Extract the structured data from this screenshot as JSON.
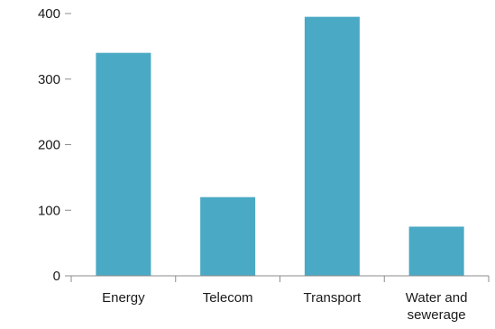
{
  "chart_data": {
    "type": "bar",
    "title": "",
    "xlabel": "",
    "ylabel": "",
    "categories": [
      "Energy",
      "Telecom",
      "Transport",
      "Water and sewerage"
    ],
    "category_lines": [
      [
        "Energy"
      ],
      [
        "Telecom"
      ],
      [
        "Transport"
      ],
      [
        "Water and",
        "sewerage"
      ]
    ],
    "values": [
      340,
      120,
      395,
      75
    ],
    "ylim": [
      0,
      400
    ],
    "yticks": [
      0,
      100,
      200,
      300,
      400
    ],
    "grid": false,
    "legend": "none",
    "bar_color": "#4aa9c4",
    "axis_color": "#8c8c8c"
  }
}
